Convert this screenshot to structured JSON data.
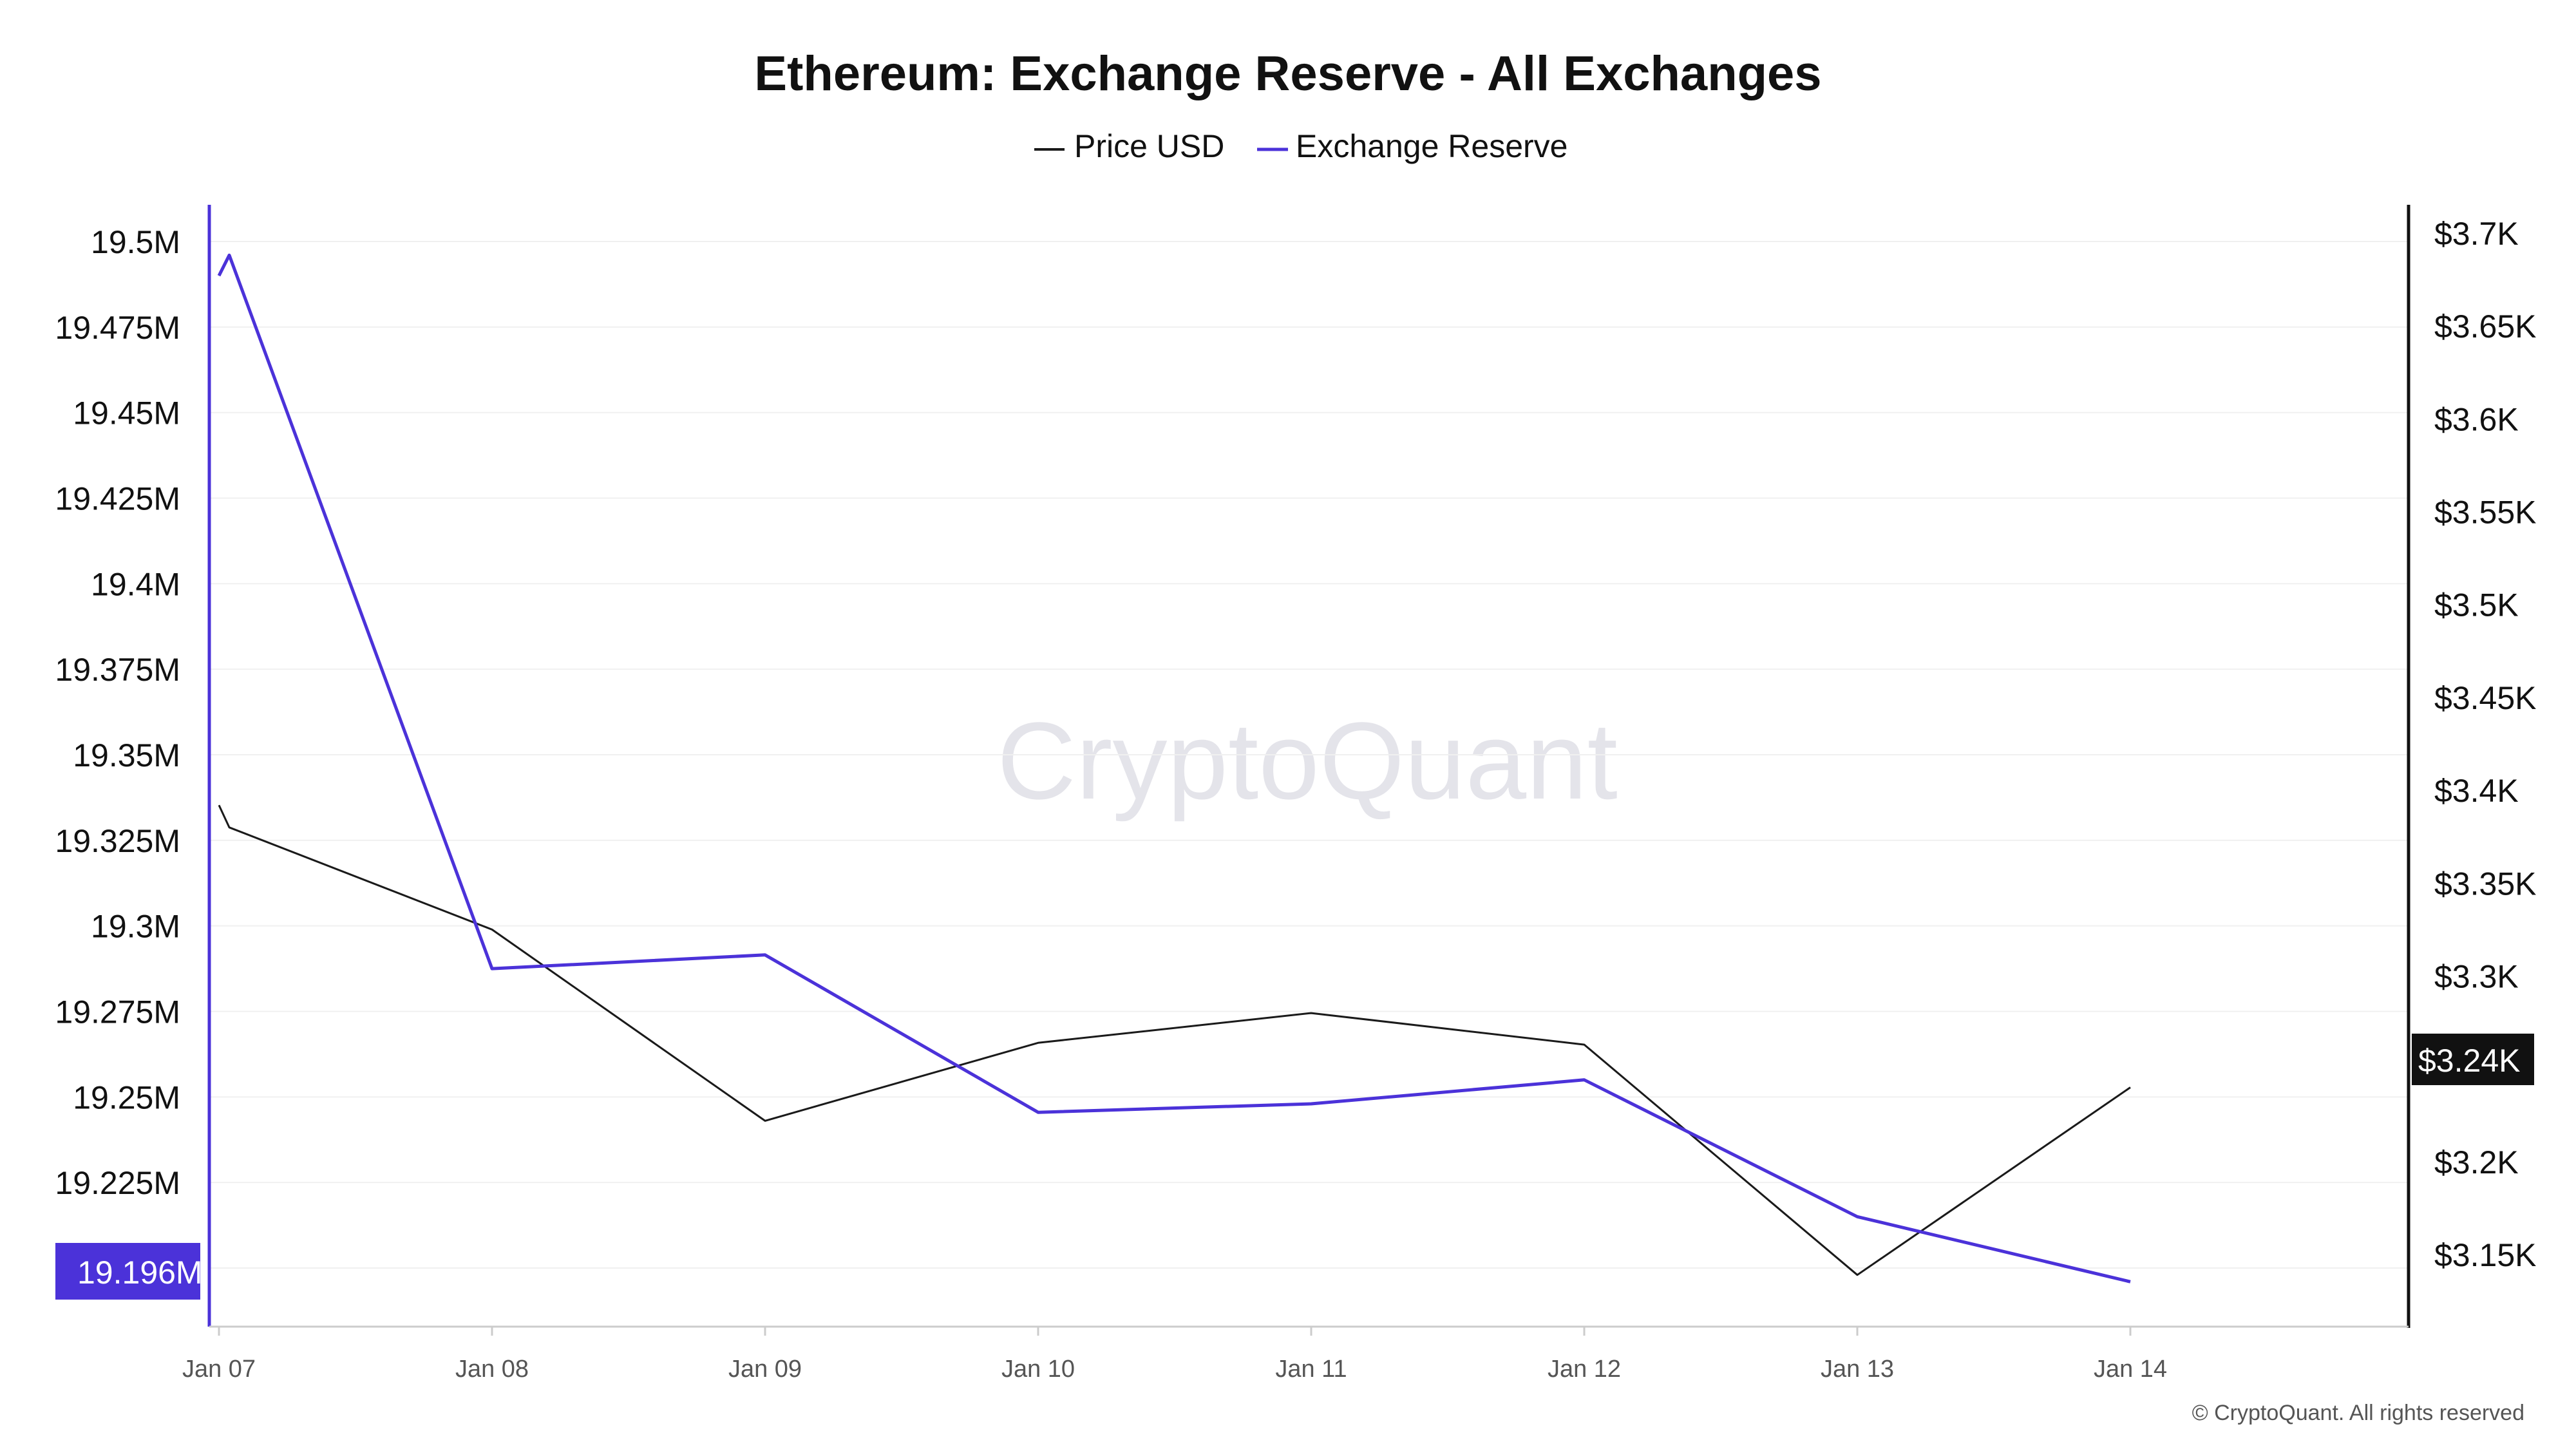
{
  "chart_data": {
    "type": "line",
    "title": "Ethereum: Exchange Reserve - All Exchanges",
    "x": [
      "Jan 07",
      "Jan 07",
      "Jan 08",
      "Jan 09",
      "Jan 10",
      "Jan 11",
      "Jan 12",
      "Jan 13",
      "Jan 14"
    ],
    "x_tick_labels": [
      "Jan 07",
      "Jan 08",
      "Jan 09",
      "Jan 10",
      "Jan 11",
      "Jan 12",
      "Jan 13",
      "Jan 14"
    ],
    "series": [
      {
        "name": "Price USD",
        "axis": "right",
        "color": "#1a1a1a",
        "values": [
          3392,
          3380,
          3325,
          3222,
          3264,
          3280,
          3263,
          3139,
          3240
        ]
      },
      {
        "name": "Exchange Reserve",
        "axis": "left",
        "color": "#4b32d9",
        "values": [
          19490000,
          19496000,
          19287500,
          19291500,
          19245500,
          19248000,
          19255000,
          19215000,
          19196000
        ]
      }
    ],
    "y_left": {
      "ticks": [
        19225000,
        19250000,
        19275000,
        19300000,
        19325000,
        19350000,
        19375000,
        19400000,
        19425000,
        19450000,
        19475000,
        19500000
      ],
      "tick_labels": [
        "19.225M",
        "19.25M",
        "19.275M",
        "19.3M",
        "19.325M",
        "19.35M",
        "19.375M",
        "19.4M",
        "19.425M",
        "19.45M",
        "19.475M",
        "19.5M"
      ],
      "range": [
        19178000,
        19510000
      ],
      "current_value_label": "19.196M",
      "current_value": 19196000,
      "color": "#4b32d9"
    },
    "y_right": {
      "ticks": [
        3150,
        3200,
        3300,
        3350,
        3400,
        3450,
        3500,
        3550,
        3600,
        3650,
        3700
      ],
      "tick_labels": [
        "$3.15K",
        "$3.2K",
        "$3.3K",
        "$3.35K",
        "$3.4K",
        "$3.45K",
        "$3.5K",
        "$3.55K",
        "$3.6K",
        "$3.65K",
        "$3.7K"
      ],
      "range": [
        3100,
        3720
      ],
      "current_value_label": "$3.24K",
      "current_value": 3240,
      "color": "#111111"
    },
    "grid": true,
    "legend": "top-center"
  },
  "watermark": "CryptoQuant",
  "copyright": "© CryptoQuant. All rights reserved"
}
